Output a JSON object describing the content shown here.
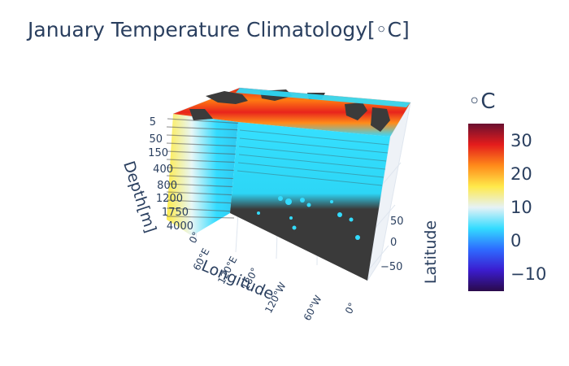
{
  "chart_data": {
    "type": "volume-3d",
    "title": "January Temperature Climatology[◦C]",
    "axes": {
      "depth": {
        "label": "Depth[m]",
        "ticks": [
          "5",
          "50",
          "150",
          "400",
          "800",
          "1200",
          "1750",
          "4000"
        ],
        "range": [
          5,
          4000
        ]
      },
      "longitude": {
        "label": "Longitude",
        "ticks": [
          "0°",
          "60°E",
          "120°E",
          "180°",
          "120°W",
          "60°W",
          "0°"
        ]
      },
      "latitude": {
        "label": "Latitude",
        "ticks": [
          "50",
          "0",
          "−50"
        ],
        "tick_values": [
          50,
          0,
          -50
        ]
      }
    },
    "colorbar": {
      "title": "◦C",
      "ticks": [
        "30",
        "20",
        "10",
        "0",
        "−10"
      ],
      "tick_values": [
        30,
        20,
        10,
        0,
        -10
      ],
      "range": [
        -15,
        35
      ],
      "colorscale": [
        "#2a0a4a",
        "#3b1ccf",
        "#2e6bff",
        "#33dcff",
        "#e6f2f6",
        "#ffe94a",
        "#ff8a1a",
        "#e41c1c",
        "#6a1030"
      ]
    },
    "colors": {
      "land": "#3b3b3b",
      "grid": "#dfe6ef",
      "text": "#2a3f5f"
    }
  }
}
